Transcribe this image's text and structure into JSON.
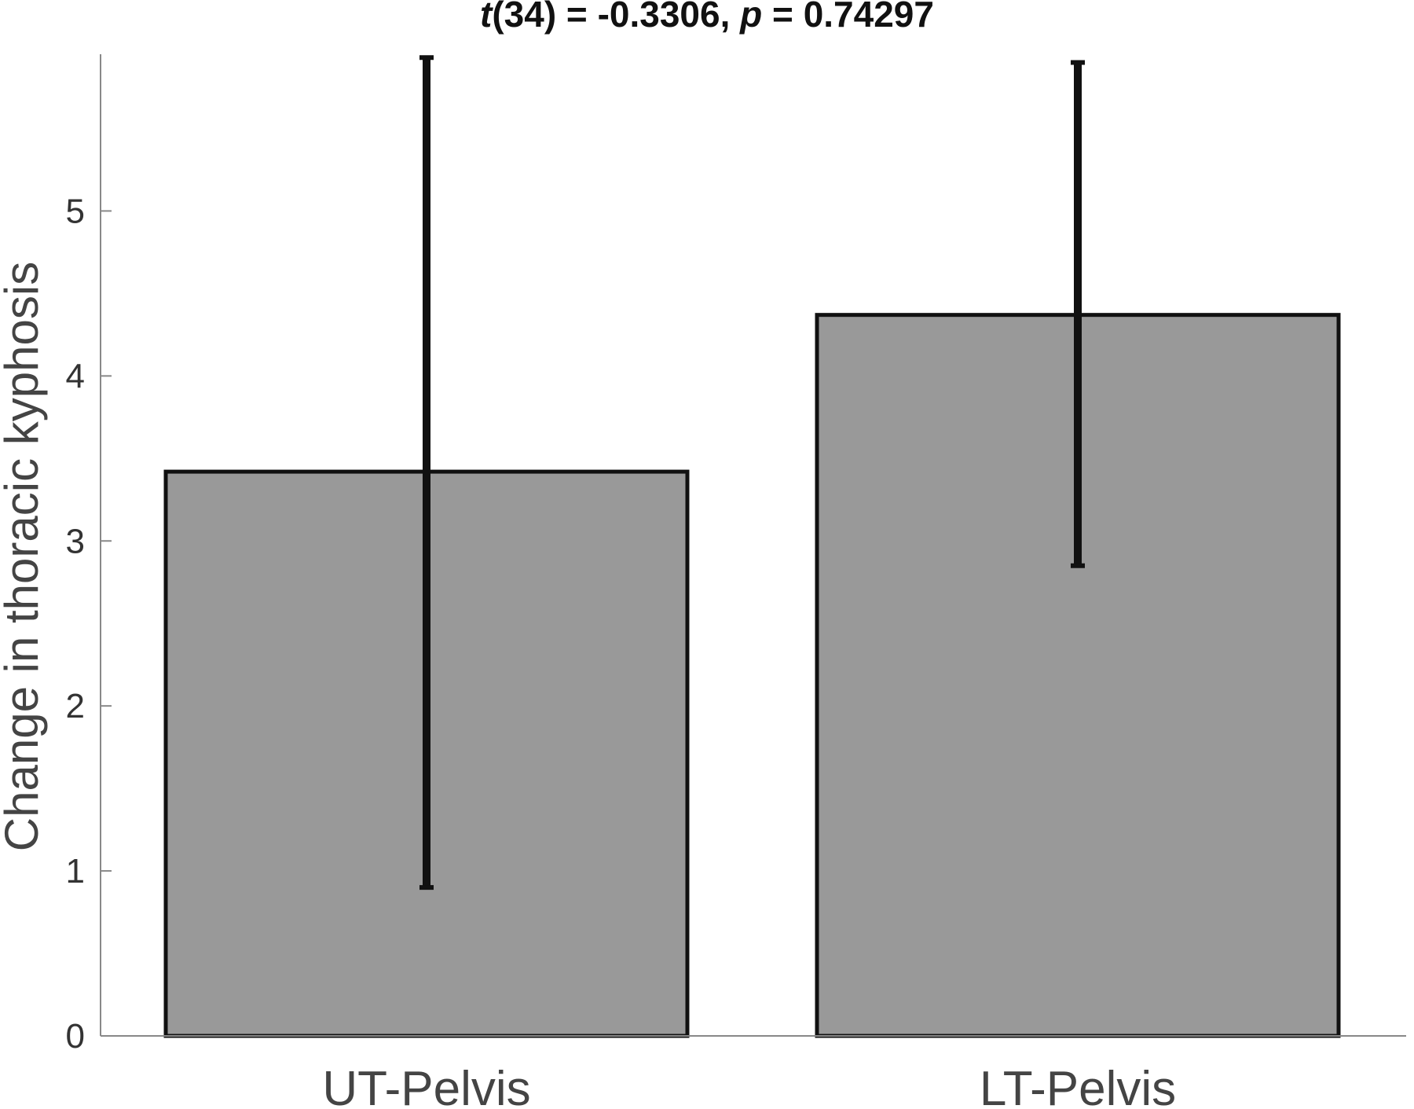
{
  "chart_data": {
    "type": "bar",
    "title": {
      "t_symbol": "t",
      "t_rest": "(34) = -0.3306, ",
      "p_symbol": "p",
      "p_rest": " = 0.74297"
    },
    "ylabel": "Change in thoracic kyphosis",
    "xlabel": "",
    "categories": [
      "UT-Pelvis",
      "LT-Pelvis"
    ],
    "values": [
      3.42,
      4.37
    ],
    "error_low": [
      0.9,
      2.85
    ],
    "error_high": [
      5.93,
      5.9
    ],
    "ylim": [
      0,
      5.95
    ],
    "yticks": [
      0,
      1,
      2,
      3,
      4,
      5
    ],
    "grid": false,
    "legend": "none",
    "colors": {
      "bar_fill": "#999999",
      "bar_stroke": "#111111",
      "error_bar": "#111111",
      "axis": "#888888"
    }
  }
}
